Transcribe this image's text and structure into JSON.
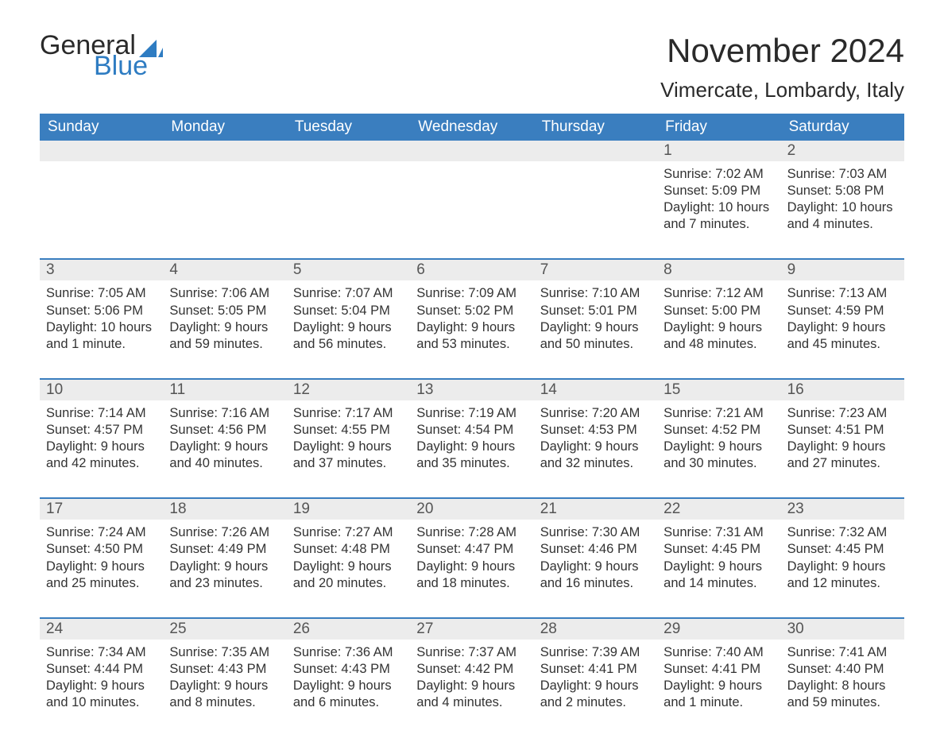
{
  "logo": {
    "text1": "General",
    "text2": "Blue"
  },
  "title": "November 2024",
  "location": "Vimercate, Lombardy, Italy",
  "colors": {
    "header_bg": "#3a7ebf",
    "header_text": "#ffffff",
    "daynum_bg": "#ececec",
    "border": "#3a7ebf",
    "logo_blue": "#2e7cc2",
    "body_text": "#333333",
    "page_bg": "#ffffff"
  },
  "days_of_week": [
    "Sunday",
    "Monday",
    "Tuesday",
    "Wednesday",
    "Thursday",
    "Friday",
    "Saturday"
  ],
  "weeks": [
    [
      null,
      null,
      null,
      null,
      null,
      {
        "n": "1",
        "sunrise": "7:02 AM",
        "sunset": "5:09 PM",
        "daylight": "10 hours and 7 minutes."
      },
      {
        "n": "2",
        "sunrise": "7:03 AM",
        "sunset": "5:08 PM",
        "daylight": "10 hours and 4 minutes."
      }
    ],
    [
      {
        "n": "3",
        "sunrise": "7:05 AM",
        "sunset": "5:06 PM",
        "daylight": "10 hours and 1 minute."
      },
      {
        "n": "4",
        "sunrise": "7:06 AM",
        "sunset": "5:05 PM",
        "daylight": "9 hours and 59 minutes."
      },
      {
        "n": "5",
        "sunrise": "7:07 AM",
        "sunset": "5:04 PM",
        "daylight": "9 hours and 56 minutes."
      },
      {
        "n": "6",
        "sunrise": "7:09 AM",
        "sunset": "5:02 PM",
        "daylight": "9 hours and 53 minutes."
      },
      {
        "n": "7",
        "sunrise": "7:10 AM",
        "sunset": "5:01 PM",
        "daylight": "9 hours and 50 minutes."
      },
      {
        "n": "8",
        "sunrise": "7:12 AM",
        "sunset": "5:00 PM",
        "daylight": "9 hours and 48 minutes."
      },
      {
        "n": "9",
        "sunrise": "7:13 AM",
        "sunset": "4:59 PM",
        "daylight": "9 hours and 45 minutes."
      }
    ],
    [
      {
        "n": "10",
        "sunrise": "7:14 AM",
        "sunset": "4:57 PM",
        "daylight": "9 hours and 42 minutes."
      },
      {
        "n": "11",
        "sunrise": "7:16 AM",
        "sunset": "4:56 PM",
        "daylight": "9 hours and 40 minutes."
      },
      {
        "n": "12",
        "sunrise": "7:17 AM",
        "sunset": "4:55 PM",
        "daylight": "9 hours and 37 minutes."
      },
      {
        "n": "13",
        "sunrise": "7:19 AM",
        "sunset": "4:54 PM",
        "daylight": "9 hours and 35 minutes."
      },
      {
        "n": "14",
        "sunrise": "7:20 AM",
        "sunset": "4:53 PM",
        "daylight": "9 hours and 32 minutes."
      },
      {
        "n": "15",
        "sunrise": "7:21 AM",
        "sunset": "4:52 PM",
        "daylight": "9 hours and 30 minutes."
      },
      {
        "n": "16",
        "sunrise": "7:23 AM",
        "sunset": "4:51 PM",
        "daylight": "9 hours and 27 minutes."
      }
    ],
    [
      {
        "n": "17",
        "sunrise": "7:24 AM",
        "sunset": "4:50 PM",
        "daylight": "9 hours and 25 minutes."
      },
      {
        "n": "18",
        "sunrise": "7:26 AM",
        "sunset": "4:49 PM",
        "daylight": "9 hours and 23 minutes."
      },
      {
        "n": "19",
        "sunrise": "7:27 AM",
        "sunset": "4:48 PM",
        "daylight": "9 hours and 20 minutes."
      },
      {
        "n": "20",
        "sunrise": "7:28 AM",
        "sunset": "4:47 PM",
        "daylight": "9 hours and 18 minutes."
      },
      {
        "n": "21",
        "sunrise": "7:30 AM",
        "sunset": "4:46 PM",
        "daylight": "9 hours and 16 minutes."
      },
      {
        "n": "22",
        "sunrise": "7:31 AM",
        "sunset": "4:45 PM",
        "daylight": "9 hours and 14 minutes."
      },
      {
        "n": "23",
        "sunrise": "7:32 AM",
        "sunset": "4:45 PM",
        "daylight": "9 hours and 12 minutes."
      }
    ],
    [
      {
        "n": "24",
        "sunrise": "7:34 AM",
        "sunset": "4:44 PM",
        "daylight": "9 hours and 10 minutes."
      },
      {
        "n": "25",
        "sunrise": "7:35 AM",
        "sunset": "4:43 PM",
        "daylight": "9 hours and 8 minutes."
      },
      {
        "n": "26",
        "sunrise": "7:36 AM",
        "sunset": "4:43 PM",
        "daylight": "9 hours and 6 minutes."
      },
      {
        "n": "27",
        "sunrise": "7:37 AM",
        "sunset": "4:42 PM",
        "daylight": "9 hours and 4 minutes."
      },
      {
        "n": "28",
        "sunrise": "7:39 AM",
        "sunset": "4:41 PM",
        "daylight": "9 hours and 2 minutes."
      },
      {
        "n": "29",
        "sunrise": "7:40 AM",
        "sunset": "4:41 PM",
        "daylight": "9 hours and 1 minute."
      },
      {
        "n": "30",
        "sunrise": "7:41 AM",
        "sunset": "4:40 PM",
        "daylight": "8 hours and 59 minutes."
      }
    ]
  ]
}
